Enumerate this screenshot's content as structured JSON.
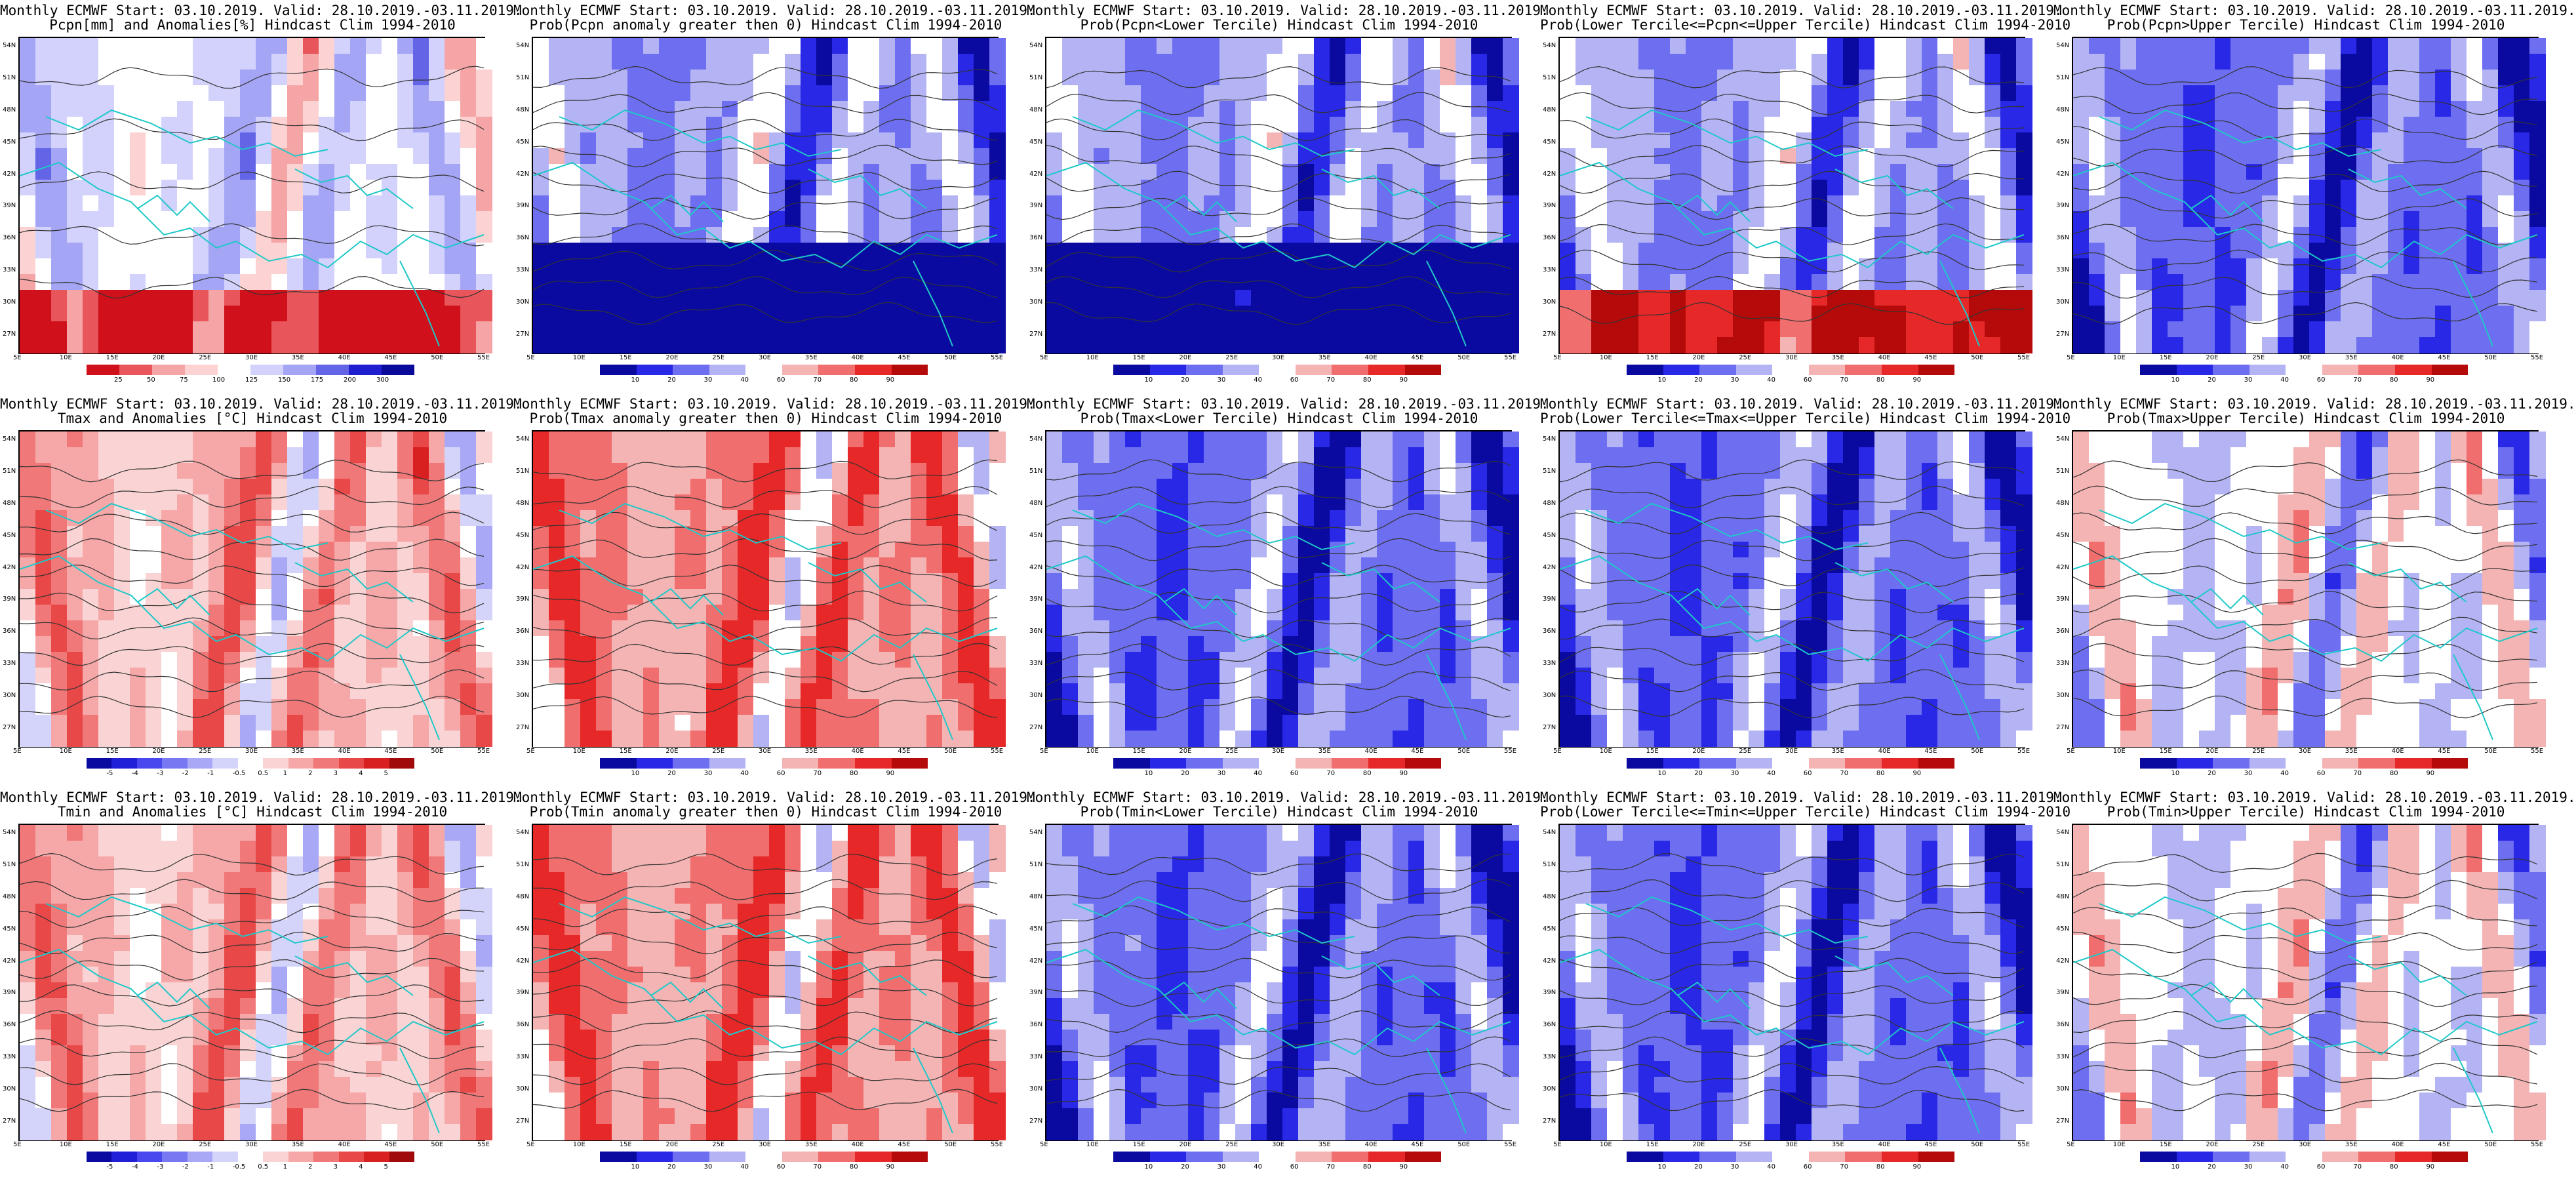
{
  "panels": [
    {
      "row": 0,
      "col": 0,
      "line1": "Monthly ECMWF Start: 03.10.2019. Valid: 28.10.2019.-03.11.2019.",
      "line2": "Pcpn[mm] and Anomalies[%] Hindcast Clim 1994-2010",
      "scale": "pcpn"
    },
    {
      "row": 0,
      "col": 1,
      "line1": "Monthly ECMWF Start: 03.10.2019. Valid: 28.10.2019.-03.11.2019.",
      "line2": "Prob(Pcpn anomaly greater then 0) Hindcast Clim 1994-2010",
      "scale": "prob"
    },
    {
      "row": 0,
      "col": 2,
      "line1": "Monthly ECMWF Start: 03.10.2019. Valid: 28.10.2019.-03.11.2019.",
      "line2": "Prob(Pcpn<Lower Tercile) Hindcast Clim 1994-2010",
      "scale": "prob"
    },
    {
      "row": 0,
      "col": 3,
      "line1": "Monthly ECMWF Start: 03.10.2019. Valid: 28.10.2019.-03.11.2019.",
      "line2": "Prob(Lower Tercile<=Pcpn<=Upper Tercile) Hindcast Clim 1994-2010",
      "scale": "prob"
    },
    {
      "row": 0,
      "col": 4,
      "line1": "Monthly ECMWF Start: 03.10.2019. Valid: 28.10.2019.-03.11.2019.",
      "line2": "Prob(Pcpn>Upper Tercile) Hindcast Clim 1994-2010",
      "scale": "prob"
    },
    {
      "row": 1,
      "col": 0,
      "line1": "Monthly ECMWF Start: 03.10.2019. Valid: 28.10.2019.-03.11.2019.",
      "line2": "Tmax and Anomalies [°C] Hindcast Clim 1994-2010",
      "scale": "temp"
    },
    {
      "row": 1,
      "col": 1,
      "line1": "Monthly ECMWF Start: 03.10.2019. Valid: 28.10.2019.-03.11.2019.",
      "line2": "Prob(Tmax anomaly greater then 0) Hindcast Clim 1994-2010",
      "scale": "prob"
    },
    {
      "row": 1,
      "col": 2,
      "line1": "Monthly ECMWF Start: 03.10.2019. Valid: 28.10.2019.-03.11.2019.",
      "line2": "Prob(Tmax<Lower Tercile) Hindcast Clim 1994-2010",
      "scale": "prob"
    },
    {
      "row": 1,
      "col": 3,
      "line1": "Monthly ECMWF Start: 03.10.2019. Valid: 28.10.2019.-03.11.2019.",
      "line2": "Prob(Lower Tercile<=Tmax<=Upper Tercile) Hindcast Clim 1994-2010",
      "scale": "prob"
    },
    {
      "row": 1,
      "col": 4,
      "line1": "Monthly ECMWF Start: 03.10.2019. Valid: 28.10.2019.-03.11.2019.",
      "line2": "Prob(Tmax>Upper Tercile) Hindcast Clim 1994-2010",
      "scale": "prob"
    },
    {
      "row": 2,
      "col": 0,
      "line1": "Monthly ECMWF Start: 03.10.2019. Valid: 28.10.2019.-03.11.2019.",
      "line2": "Tmin and Anomalies [°C] Hindcast Clim 1994-2010",
      "scale": "temp"
    },
    {
      "row": 2,
      "col": 1,
      "line1": "Monthly ECMWF Start: 03.10.2019. Valid: 28.10.2019.-03.11.2019.",
      "line2": "Prob(Tmin anomaly greater then 0) Hindcast Clim 1994-2010",
      "scale": "prob"
    },
    {
      "row": 2,
      "col": 2,
      "line1": "Monthly ECMWF Start: 03.10.2019. Valid: 28.10.2019.-03.11.2019.",
      "line2": "Prob(Tmin<Lower Tercile) Hindcast Clim 1994-2010",
      "scale": "prob"
    },
    {
      "row": 2,
      "col": 3,
      "line1": "Monthly ECMWF Start: 03.10.2019. Valid: 28.10.2019.-03.11.2019.",
      "line2": "Prob(Lower Tercile<=Tmin<=Upper Tercile) Hindcast Clim 1994-2010",
      "scale": "prob"
    },
    {
      "row": 2,
      "col": 4,
      "line1": "Monthly ECMWF Start: 03.10.2019. Valid: 28.10.2019.-03.11.2019.",
      "line2": "Prob(Tmin>Upper Tercile) Hindcast Clim 1994-2010",
      "scale": "prob"
    }
  ],
  "lat_labels": [
    "54N",
    "51N",
    "48N",
    "45N",
    "42N",
    "39N",
    "36N",
    "33N",
    "30N",
    "27N"
  ],
  "lon_labels": [
    "5E",
    "10E",
    "15E",
    "20E",
    "25E",
    "30E",
    "35E",
    "40E",
    "45E",
    "50E",
    "55E"
  ],
  "scales": {
    "pcpn": {
      "labels": [
        "25",
        "50",
        "75",
        "100",
        "125",
        "150",
        "175",
        "200",
        "300"
      ],
      "colors": [
        "#d0101a",
        "#e8555a",
        "#f5a5a5",
        "#fcd2d2",
        "#ffffff",
        "#d2d2fc",
        "#a5a5f5",
        "#6464e6",
        "#1f1fd0",
        "#0a0a9a"
      ]
    },
    "prob": {
      "labels": [
        "10",
        "20",
        "30",
        "40",
        "60",
        "70",
        "80",
        "90"
      ],
      "colors": [
        "#0a0aa0",
        "#2828e6",
        "#6e6ef0",
        "#b4b4f5",
        "#ffffff",
        "#f5b4b4",
        "#f06e6e",
        "#e62828",
        "#b40a0a"
      ]
    },
    "temp": {
      "labels": [
        "-5",
        "-4",
        "-3",
        "-2",
        "-1",
        "-0.5",
        "0.5",
        "1",
        "2",
        "3",
        "4",
        "5"
      ],
      "colors": [
        "#0a0aa0",
        "#2020d8",
        "#4848ee",
        "#7878f2",
        "#a8a8f6",
        "#d4d4fa",
        "#ffffff",
        "#fad4d4",
        "#f6a8a8",
        "#f07878",
        "#e84848",
        "#d82020",
        "#a00a0a"
      ]
    }
  },
  "colors": {
    "coast": "#1fc8c8",
    "contour": "#333333",
    "frame": "#000000"
  }
}
